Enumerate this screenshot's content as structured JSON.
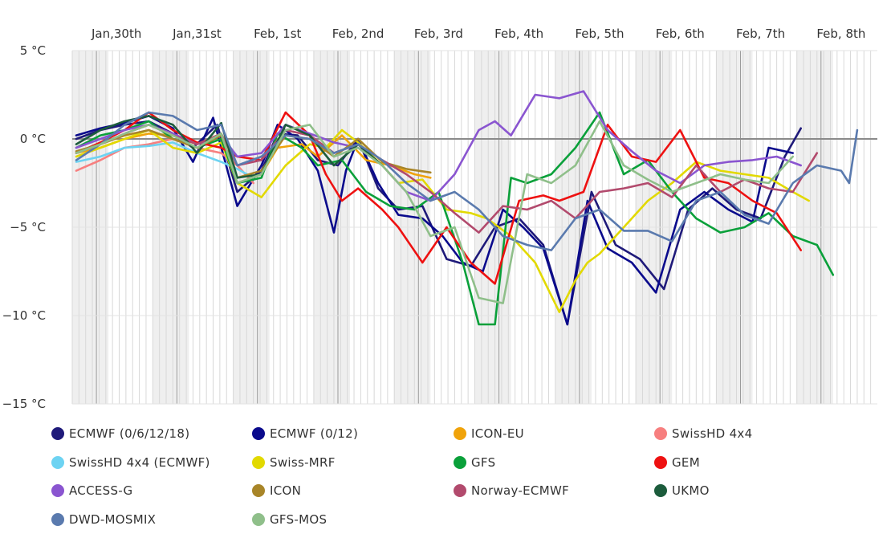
{
  "chart_data": {
    "type": "line",
    "title": "",
    "xlabel": "",
    "ylabel": "",
    "x_unit": "days since Jan 29 12:00 (Jan 30 label at 0.5)",
    "x_tick_labels": [
      "Jan,30th",
      "Jan,31st",
      "Feb, 1st",
      "Feb, 2nd",
      "Feb, 3rd",
      "Feb, 4th",
      "Feb, 5th",
      "Feb, 6th",
      "Feb, 7th",
      "Feb, 8th"
    ],
    "x_tick_positions": [
      0.5,
      1.5,
      2.5,
      3.5,
      4.5,
      5.5,
      6.5,
      7.5,
      8.5,
      9.5
    ],
    "xlim": [
      -0.05,
      9.95
    ],
    "y_ticks": [
      5,
      0,
      -5,
      -10,
      -15
    ],
    "y_tick_labels": [
      "5 °C",
      "0 °C",
      "−5 °C",
      "−10 °C",
      "−15 °C"
    ],
    "ylim": [
      -15,
      5
    ],
    "grid": true,
    "legend_position": "bottom",
    "series": [
      {
        "name": "ECMWF (0/6/12/18)",
        "color": "#1f1a7a",
        "x": [
          0,
          0.3,
          0.6,
          0.9,
          1.2,
          1.45,
          1.75,
          2.0,
          2.3,
          2.5,
          2.75,
          3.0,
          3.25,
          3.5,
          3.75,
          4.0,
          4.3,
          4.6,
          4.9,
          5.2,
          5.5,
          5.8,
          6.1,
          6.4,
          6.7,
          7.0,
          7.3,
          7.6,
          7.9,
          8.2,
          8.5,
          8.8,
          9.0
        ],
        "y": [
          0,
          0.5,
          0.8,
          1.0,
          0.3,
          -0.5,
          0.8,
          -3.0,
          -1.8,
          0.3,
          0.2,
          -1.2,
          -1.5,
          0,
          -2.8,
          -4.0,
          -3.8,
          -6.8,
          -7.2,
          -5.0,
          -4.5,
          -6.0,
          -10.5,
          -3.0,
          -6.0,
          -6.8,
          -8.5,
          -4.0,
          -2.8,
          -4.0,
          -4.5,
          -1.0,
          0.6
        ]
      },
      {
        "name": "ECMWF (0/12)",
        "color": "#0a0a8c",
        "x": [
          0,
          0.3,
          0.6,
          0.9,
          1.2,
          1.45,
          1.7,
          2.0,
          2.3,
          2.5,
          2.75,
          3.0,
          3.2,
          3.35,
          3.5,
          3.75,
          4.0,
          4.3,
          4.55,
          4.8,
          5.05,
          5.3,
          5.55,
          5.8,
          6.1,
          6.35,
          6.6,
          6.9,
          7.2,
          7.5,
          7.8,
          8.1,
          8.4,
          8.6,
          8.9
        ],
        "y": [
          0.2,
          0.6,
          0.9,
          1.3,
          0.6,
          -1.3,
          1.2,
          -3.8,
          -1.5,
          0.8,
          0.0,
          -1.8,
          -5.3,
          -1.8,
          0,
          -2.5,
          -4.3,
          -4.5,
          -5.5,
          -7.0,
          -7.5,
          -4.0,
          -5.0,
          -6.2,
          -10.5,
          -3.5,
          -6.2,
          -7.0,
          -8.7,
          -4.0,
          -3.0,
          -4.0,
          -4.7,
          -0.5,
          -0.8
        ]
      },
      {
        "name": "ICON-EU",
        "color": "#f0a30a",
        "x": [
          0,
          0.3,
          0.6,
          0.9,
          1.2,
          1.5,
          1.8,
          2.0,
          2.3,
          2.5,
          2.8,
          3.0,
          3.3,
          3.6,
          3.9,
          4.2,
          4.4
        ],
        "y": [
          -0.8,
          -0.5,
          0.0,
          0.3,
          0.2,
          -0.3,
          0.3,
          -2.5,
          -2.0,
          -0.5,
          -0.3,
          -1.0,
          0.2,
          -1.2,
          -1.5,
          -2.0,
          -2.2
        ]
      },
      {
        "name": "SwissHD 4x4",
        "color": "#f77f7f",
        "x": [
          0,
          0.3,
          0.6,
          0.9,
          1.2,
          1.5,
          1.8,
          2.0,
          2.2
        ],
        "y": [
          -1.8,
          -1.2,
          -0.5,
          -0.3,
          0.0,
          -0.5,
          -0.8,
          -1.5,
          -2.5
        ]
      },
      {
        "name": "SwissHD 4x4 (ECMWF)",
        "color": "#6dd3f2",
        "x": [
          0,
          0.3,
          0.6,
          0.9,
          1.2,
          1.5,
          1.8,
          2.0,
          2.2
        ],
        "y": [
          -1.3,
          -1.0,
          -0.5,
          -0.4,
          -0.2,
          -0.8,
          -1.3,
          -1.7,
          -2.2
        ]
      },
      {
        "name": "Swiss-MRF",
        "color": "#e2d900",
        "x": [
          0,
          0.3,
          0.6,
          0.9,
          1.2,
          1.5,
          1.8,
          2.0,
          2.3,
          2.6,
          2.9,
          3.1,
          3.3,
          3.5,
          3.8,
          4.0,
          4.3,
          4.6,
          4.9,
          5.1,
          5.4,
          5.7,
          6.0,
          6.2,
          6.35,
          6.5,
          6.8,
          7.1,
          7.4,
          7.7,
          8.0,
          8.3,
          8.6,
          8.9,
          9.1
        ],
        "y": [
          -1.0,
          -0.5,
          0.0,
          0.5,
          -0.5,
          -0.8,
          -0.2,
          -2.5,
          -3.3,
          -1.5,
          -0.3,
          -0.5,
          0.5,
          -0.2,
          -1.5,
          -2.5,
          -2.3,
          -4.0,
          -4.2,
          -4.5,
          -5.5,
          -7.0,
          -9.8,
          -8.0,
          -7.0,
          -6.5,
          -5.0,
          -3.5,
          -2.5,
          -1.3,
          -1.8,
          -2.0,
          -2.2,
          -3.0,
          -3.5
        ]
      },
      {
        "name": "GFS",
        "color": "#0aa03a",
        "x": [
          0,
          0.3,
          0.6,
          0.9,
          1.2,
          1.5,
          1.8,
          2.0,
          2.3,
          2.5,
          2.8,
          3.0,
          3.3,
          3.6,
          3.9,
          4.2,
          4.5,
          4.8,
          5.0,
          5.2,
          5.4,
          5.6,
          5.9,
          6.2,
          6.5,
          6.8,
          7.1,
          7.4,
          7.7,
          8.0,
          8.3,
          8.6,
          8.9,
          9.2,
          9.4
        ],
        "y": [
          -0.5,
          0.2,
          0.5,
          1.0,
          0.0,
          -0.5,
          0.0,
          -2.5,
          -2.2,
          0.3,
          -0.5,
          -1.5,
          -1.2,
          -3.0,
          -3.8,
          -4.0,
          -3.0,
          -7.0,
          -10.5,
          -10.5,
          -2.2,
          -2.5,
          -2.0,
          -0.5,
          1.5,
          -2.0,
          -1.2,
          -3.0,
          -4.5,
          -5.3,
          -5.0,
          -4.2,
          -5.5,
          -6.0,
          -7.7
        ]
      },
      {
        "name": "GEM",
        "color": "#ee1111",
        "x": [
          0,
          0.3,
          0.6,
          0.9,
          1.2,
          1.5,
          1.8,
          2.0,
          2.3,
          2.6,
          2.9,
          3.1,
          3.3,
          3.5,
          3.8,
          4.0,
          4.3,
          4.6,
          4.9,
          5.2,
          5.5,
          5.8,
          6.0,
          6.3,
          6.6,
          6.9,
          7.2,
          7.5,
          7.8,
          8.1,
          8.4,
          8.7,
          9.0
        ],
        "y": [
          -0.8,
          -0.2,
          0.5,
          1.5,
          0.5,
          -0.2,
          -0.5,
          -1.0,
          -1.2,
          1.5,
          0.2,
          -2.0,
          -3.5,
          -2.8,
          -4.0,
          -5.0,
          -7.0,
          -5.0,
          -7.0,
          -8.2,
          -3.5,
          -3.2,
          -3.5,
          -3.0,
          0.8,
          -1.0,
          -1.3,
          0.5,
          -2.2,
          -2.5,
          -3.5,
          -4.2,
          -6.3
        ]
      },
      {
        "name": "ACCESS-G",
        "color": "#8a55d0",
        "x": [
          0,
          0.3,
          0.6,
          0.9,
          1.2,
          1.5,
          1.8,
          2.0,
          2.3,
          2.6,
          2.9,
          3.2,
          3.5,
          3.8,
          4.1,
          4.4,
          4.7,
          5.0,
          5.2,
          5.4,
          5.7,
          6.0,
          6.3,
          6.6,
          6.9,
          7.2,
          7.5,
          7.8,
          8.1,
          8.4,
          8.7,
          9.0
        ],
        "y": [
          -0.5,
          0.0,
          0.5,
          0.8,
          0.3,
          -0.3,
          0.2,
          -1.0,
          -0.8,
          0.8,
          0.3,
          -0.2,
          -0.5,
          -1.5,
          -3.0,
          -3.5,
          -2.0,
          0.5,
          1.0,
          0.2,
          2.5,
          2.3,
          2.7,
          0.5,
          -0.7,
          -1.8,
          -2.5,
          -1.5,
          -1.3,
          -1.2,
          -1.0,
          -1.5
        ]
      },
      {
        "name": "ICON",
        "color": "#a88528",
        "x": [
          0,
          0.3,
          0.6,
          0.9,
          1.2,
          1.5,
          1.8,
          2.0,
          2.3,
          2.6,
          2.9,
          3.2,
          3.5,
          3.8,
          4.1,
          4.4
        ],
        "y": [
          -0.7,
          -0.3,
          0.2,
          0.5,
          0.0,
          -0.5,
          0.2,
          -2.2,
          -1.8,
          0.2,
          0.0,
          -1.0,
          0.0,
          -1.3,
          -1.7,
          -1.9
        ]
      },
      {
        "name": "Norway-ECMWF",
        "color": "#b24a6d",
        "x": [
          0,
          0.3,
          0.6,
          0.9,
          1.2,
          1.5,
          1.8,
          2.0,
          2.3,
          2.6,
          2.9,
          3.2,
          3.5,
          3.8,
          4.1,
          4.4,
          4.7,
          5.0,
          5.3,
          5.6,
          5.9,
          6.2,
          6.5,
          6.8,
          7.1,
          7.4,
          7.7,
          8.0,
          8.3,
          8.6,
          8.9,
          9.2
        ],
        "y": [
          -0.8,
          -0.3,
          0.3,
          0.8,
          0.2,
          -0.3,
          0.3,
          -1.5,
          -1.2,
          0.5,
          0.2,
          -0.8,
          -0.3,
          -1.2,
          -2.0,
          -3.0,
          -4.2,
          -5.3,
          -3.8,
          -4.0,
          -3.5,
          -4.5,
          -3.0,
          -2.8,
          -2.5,
          -3.3,
          -1.5,
          -3.0,
          -2.3,
          -2.8,
          -3.0,
          -0.8
        ]
      },
      {
        "name": "UKMO",
        "color": "#1c5c3c",
        "x": [
          0,
          0.3,
          0.6,
          0.9,
          1.2,
          1.5,
          1.8,
          2.0,
          2.3,
          2.6,
          2.9,
          3.2,
          3.5,
          3.8
        ],
        "y": [
          -0.3,
          0.5,
          1.0,
          1.3,
          0.8,
          -0.8,
          0.9,
          -2.2,
          -2.0,
          0.8,
          0.2,
          -1.5,
          -0.3,
          -1.5
        ]
      },
      {
        "name": "DWD-MOSMIX",
        "color": "#5a7aae",
        "x": [
          0,
          0.3,
          0.6,
          0.9,
          1.2,
          1.5,
          1.8,
          2.0,
          2.3,
          2.6,
          2.9,
          3.2,
          3.5,
          3.8,
          4.1,
          4.4,
          4.7,
          5.0,
          5.3,
          5.6,
          5.9,
          6.2,
          6.5,
          6.8,
          7.1,
          7.4,
          7.7,
          8.0,
          8.3,
          8.6,
          8.9,
          9.2,
          9.5,
          9.6,
          9.7
        ],
        "y": [
          -1.2,
          -0.3,
          0.8,
          1.5,
          1.3,
          0.5,
          0.8,
          -1.5,
          -1.0,
          0.2,
          0.0,
          -0.8,
          -0.3,
          -1.2,
          -2.5,
          -3.5,
          -3.0,
          -4.0,
          -5.5,
          -6.0,
          -6.3,
          -4.5,
          -4.0,
          -5.2,
          -5.2,
          -5.8,
          -3.5,
          -3.0,
          -4.3,
          -4.8,
          -2.5,
          -1.5,
          -1.8,
          -2.5,
          0.5
        ]
      },
      {
        "name": "GFS-MOS",
        "color": "#8fbf8a",
        "x": [
          0,
          0.3,
          0.6,
          0.9,
          1.2,
          1.5,
          1.8,
          2.0,
          2.3,
          2.6,
          2.9,
          3.2,
          3.5,
          3.8,
          4.1,
          4.4,
          4.7,
          5.0,
          5.3,
          5.6,
          5.9,
          6.2,
          6.5,
          6.8,
          7.1,
          7.4,
          7.7,
          8.0,
          8.3,
          8.6,
          8.9
        ],
        "y": [
          -0.8,
          -0.3,
          0.3,
          0.8,
          0.2,
          -0.5,
          0.3,
          -2.5,
          -2.0,
          0.5,
          0.8,
          -1.0,
          -0.5,
          -1.5,
          -3.0,
          -5.5,
          -5.0,
          -9.0,
          -9.3,
          -2.0,
          -2.5,
          -1.5,
          1.0,
          -1.5,
          -2.3,
          -3.0,
          -2.5,
          -2.0,
          -2.3,
          -2.5,
          -1.0
        ]
      }
    ]
  }
}
